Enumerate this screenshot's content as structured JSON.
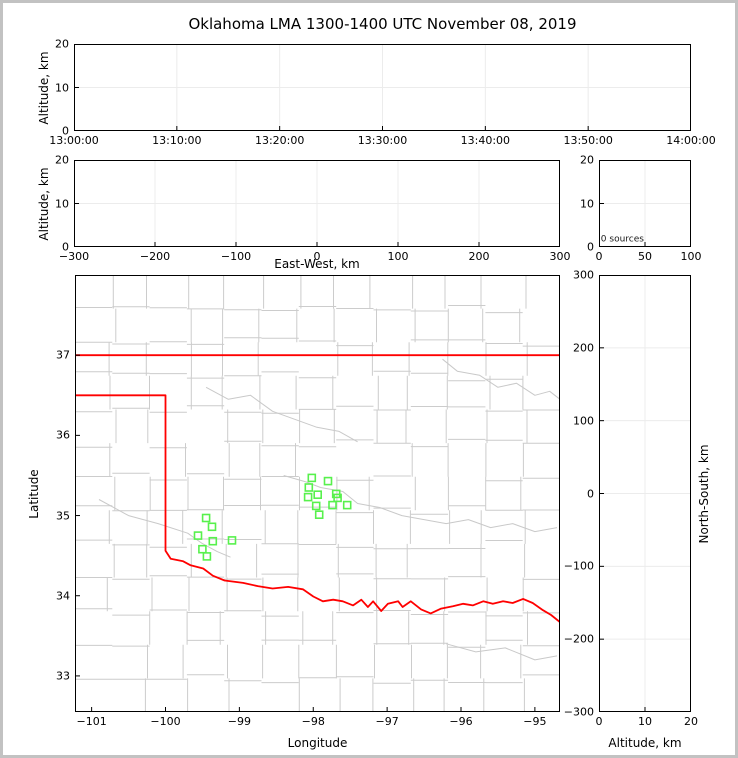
{
  "title": "Oklahoma LMA 1300-1400 UTC November 08, 2019",
  "colors": {
    "frame": "#c2c2c2",
    "background": "#ffffff",
    "axis": "#000000",
    "grid": "#ececec",
    "county": "#cccccc",
    "state_border": "#ff0000",
    "station": "#57f14c",
    "annotation": "#1a1a1a"
  },
  "chart_data": [
    {
      "id": "time_height",
      "type": "scatter",
      "description": "altitude vs time panel (empty, 0 sources)",
      "xlim": [
        0,
        60
      ],
      "ylim": [
        0,
        20
      ],
      "xticks": [
        0,
        10,
        20,
        30,
        40,
        50,
        60
      ],
      "xtick_labels": [
        "13:00:00",
        "13:10:00",
        "13:20:00",
        "13:30:00",
        "13:40:00",
        "13:50:00",
        "14:00:00"
      ],
      "yticks": [
        0,
        10,
        20
      ],
      "ytick_labels": [
        "0",
        "10",
        "20"
      ],
      "grid_x": [
        10,
        20,
        30,
        40,
        50
      ],
      "grid_y": [
        10
      ],
      "ylabel": "Altitude, km",
      "ylabel_gap": 30,
      "layers": []
    },
    {
      "id": "ew_height",
      "type": "scatter",
      "description": "altitude vs east-west distance panel (empty)",
      "xlim": [
        -300,
        300
      ],
      "ylim": [
        0,
        20
      ],
      "xticks": [
        -300,
        -200,
        -100,
        0,
        100,
        200,
        300
      ],
      "xtick_labels": [
        "−300",
        "−200",
        "−100",
        "0",
        "100",
        "200",
        "300"
      ],
      "yticks": [
        0,
        10,
        20
      ],
      "ytick_labels": [
        "0",
        "10",
        "20"
      ],
      "grid_x": [
        -200,
        -100,
        0,
        100,
        200
      ],
      "grid_y": [
        10
      ],
      "xlabel": "East-West, km",
      "xlabel_gap": 10,
      "ylabel": "Altitude, km",
      "ylabel_gap": 30,
      "layers": []
    },
    {
      "id": "alt_histogram",
      "type": "line",
      "description": "source-count histogram vs altitude (empty)",
      "xlim": [
        0,
        100
      ],
      "ylim": [
        0,
        20
      ],
      "xticks": [
        0,
        50,
        100
      ],
      "xtick_labels": [
        "0",
        "50",
        "100"
      ],
      "yticks": [
        0,
        10,
        20
      ],
      "ytick_labels": [
        "0",
        "10",
        "20"
      ],
      "grid_x": [
        50
      ],
      "grid_y": [
        10
      ],
      "layers": [
        {
          "type": "text",
          "text": "0 sources",
          "at": [
            2,
            1.3
          ],
          "size": 9,
          "color": "#1a1a1a",
          "name": "source-count-annotation"
        }
      ]
    },
    {
      "id": "plan_map",
      "type": "map-scatter",
      "description": "plan view map of Oklahoma with LMA station markers",
      "xlim": [
        -101.225,
        -94.66
      ],
      "ylim": [
        32.55,
        38.0
      ],
      "xticks": [
        -101,
        -100,
        -99,
        -98,
        -97,
        -96,
        -95
      ],
      "xtick_labels": [
        "−101",
        "−100",
        "−99",
        "−98",
        "−97",
        "−96",
        "−95"
      ],
      "yticks": [
        33,
        34,
        35,
        36,
        37
      ],
      "ytick_labels": [
        "33",
        "34",
        "35",
        "36",
        "37"
      ],
      "xlabel": "Longitude",
      "xlabel_gap": 24,
      "ylabel": "Latitude",
      "ylabel_gap": 41,
      "layers": [
        {
          "type": "county-grid",
          "name": "county-boundaries",
          "color": "#cccccc",
          "cols": 13,
          "rows": 13,
          "seed": 42
        },
        {
          "type": "polyline",
          "name": "river-arkansas",
          "color": "#c9c9c9",
          "width": 1,
          "points": [
            [
              -96.25,
              36.95
            ],
            [
              -96.05,
              36.8
            ],
            [
              -95.75,
              36.75
            ],
            [
              -95.5,
              36.6
            ],
            [
              -95.25,
              36.65
            ],
            [
              -95.0,
              36.5
            ],
            [
              -94.8,
              36.55
            ],
            [
              -94.66,
              36.45
            ]
          ]
        },
        {
          "type": "polyline",
          "name": "river-cimarron",
          "color": "#c9c9c9",
          "width": 1,
          "points": [
            [
              -99.45,
              36.6
            ],
            [
              -99.15,
              36.45
            ],
            [
              -98.85,
              36.5
            ],
            [
              -98.55,
              36.3
            ],
            [
              -98.25,
              36.2
            ],
            [
              -97.95,
              36.1
            ],
            [
              -97.65,
              36.05
            ],
            [
              -97.4,
              35.92
            ]
          ]
        },
        {
          "type": "polyline",
          "name": "river-north-fork-red",
          "color": "#c9c9c9",
          "width": 1,
          "points": [
            [
              -100.9,
              35.2
            ],
            [
              -100.5,
              35.0
            ],
            [
              -100.1,
              34.9
            ],
            [
              -99.7,
              34.78
            ],
            [
              -99.5,
              34.65
            ],
            [
              -99.3,
              34.55
            ],
            [
              -99.12,
              34.48
            ]
          ]
        },
        {
          "type": "polyline",
          "name": "river-canadian",
          "color": "#c9c9c9",
          "width": 1,
          "points": [
            [
              -98.4,
              35.5
            ],
            [
              -98.1,
              35.42
            ],
            [
              -97.9,
              35.35
            ],
            [
              -97.6,
              35.3
            ],
            [
              -97.4,
              35.15
            ],
            [
              -97.1,
              35.1
            ],
            [
              -96.8,
              35.0
            ],
            [
              -96.5,
              34.95
            ],
            [
              -96.2,
              34.9
            ],
            [
              -95.9,
              34.95
            ],
            [
              -95.6,
              34.85
            ],
            [
              -95.3,
              34.9
            ],
            [
              -95.0,
              34.8
            ],
            [
              -94.7,
              34.85
            ]
          ]
        },
        {
          "type": "polyline",
          "name": "river-sulphur",
          "color": "#c9c9c9",
          "width": 1,
          "points": [
            [
              -96.2,
              33.4
            ],
            [
              -95.8,
              33.3
            ],
            [
              -95.4,
              33.35
            ],
            [
              -95.0,
              33.2
            ],
            [
              -94.7,
              33.25
            ]
          ]
        },
        {
          "type": "polyline",
          "name": "oklahoma-north-border",
          "color": "#ff0000",
          "width": 1.8,
          "points": [
            [
              -101.225,
              37.0
            ],
            [
              -94.655,
              37.0
            ],
            [
              -94.655,
              36.68
            ]
          ]
        },
        {
          "type": "polyline",
          "name": "oklahoma-panhandle-and-red-river-border",
          "color": "#ff0000",
          "width": 1.8,
          "points": [
            [
              -101.225,
              36.5
            ],
            [
              -100.0,
              36.5
            ],
            [
              -100.0,
              34.56
            ],
            [
              -99.93,
              34.46
            ],
            [
              -99.76,
              34.43
            ],
            [
              -99.66,
              34.38
            ],
            [
              -99.49,
              34.34
            ],
            [
              -99.36,
              34.25
            ],
            [
              -99.2,
              34.19
            ],
            [
              -98.95,
              34.16
            ],
            [
              -98.75,
              34.12
            ],
            [
              -98.55,
              34.09
            ],
            [
              -98.34,
              34.11
            ],
            [
              -98.14,
              34.08
            ],
            [
              -98.0,
              33.99
            ],
            [
              -97.87,
              33.93
            ],
            [
              -97.73,
              33.95
            ],
            [
              -97.6,
              33.93
            ],
            [
              -97.46,
              33.88
            ],
            [
              -97.35,
              33.95
            ],
            [
              -97.26,
              33.86
            ],
            [
              -97.19,
              33.93
            ],
            [
              -97.08,
              33.81
            ],
            [
              -96.99,
              33.9
            ],
            [
              -96.85,
              33.93
            ],
            [
              -96.79,
              33.86
            ],
            [
              -96.68,
              33.93
            ],
            [
              -96.54,
              33.83
            ],
            [
              -96.41,
              33.78
            ],
            [
              -96.27,
              33.84
            ],
            [
              -96.11,
              33.87
            ],
            [
              -95.97,
              33.9
            ],
            [
              -95.84,
              33.88
            ],
            [
              -95.7,
              33.93
            ],
            [
              -95.57,
              33.9
            ],
            [
              -95.43,
              33.93
            ],
            [
              -95.3,
              33.91
            ],
            [
              -95.16,
              33.96
            ],
            [
              -95.03,
              33.91
            ],
            [
              -94.89,
              33.82
            ],
            [
              -94.78,
              33.76
            ],
            [
              -94.66,
              33.67
            ]
          ]
        },
        {
          "type": "squares",
          "name": "lma-station-marker",
          "color": "#57f14c",
          "points": [
            [
              -99.45,
              34.97
            ],
            [
              -99.37,
              34.86
            ],
            [
              -99.56,
              34.75
            ],
            [
              -99.36,
              34.68
            ],
            [
              -99.1,
              34.69
            ],
            [
              -99.5,
              34.58
            ],
            [
              -99.44,
              34.49
            ],
            [
              -98.02,
              35.47
            ],
            [
              -97.8,
              35.43
            ],
            [
              -98.06,
              35.35
            ],
            [
              -98.07,
              35.23
            ],
            [
              -97.94,
              35.26
            ],
            [
              -97.69,
              35.27
            ],
            [
              -97.67,
              35.22
            ],
            [
              -97.96,
              35.12
            ],
            [
              -97.74,
              35.13
            ],
            [
              -97.54,
              35.13
            ],
            [
              -97.92,
              35.01
            ]
          ]
        }
      ]
    },
    {
      "id": "ns_height",
      "type": "scatter",
      "description": "north-south distance vs altitude panel (empty)",
      "xlim": [
        0,
        20
      ],
      "ylim": [
        -300,
        300
      ],
      "xticks": [
        0,
        10,
        20
      ],
      "xtick_labels": [
        "0",
        "10",
        "20"
      ],
      "yticks": [
        -300,
        -200,
        -100,
        0,
        100,
        200,
        300
      ],
      "ytick_labels": [
        "−300",
        "−200",
        "−100",
        "0",
        "100",
        "200",
        "300"
      ],
      "grid_x": [
        10
      ],
      "grid_y": [
        -200,
        -100,
        0,
        100,
        200
      ],
      "xlabel": "Altitude, km",
      "xlabel_gap": 24,
      "ylabel_right": "North-South, km",
      "ylabel_right_gap": 13,
      "layers": []
    }
  ]
}
